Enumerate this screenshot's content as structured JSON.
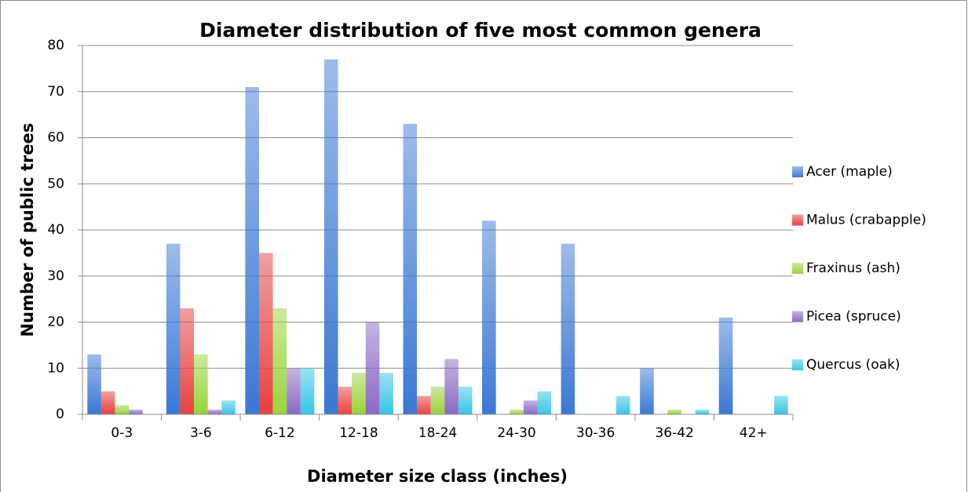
{
  "chart_data": {
    "type": "bar",
    "title": "Diameter distribution of five most common genera",
    "x_label": "Diameter size class (inches)",
    "y_label": "Number of public trees",
    "categories": [
      "0-3",
      "3-6",
      "6-12",
      "12-18",
      "18-24",
      "24-30",
      "30-36",
      "36-42",
      "42+"
    ],
    "series": [
      {
        "name": "Acer (maple)",
        "color": "#3b78d4",
        "values": [
          13,
          37,
          71,
          77,
          63,
          42,
          37,
          10,
          21
        ]
      },
      {
        "name": "Malus (crabapple)",
        "color": "#e8403f",
        "values": [
          5,
          23,
          35,
          6,
          4,
          0,
          0,
          0,
          0
        ]
      },
      {
        "name": "Fraxinus (ash)",
        "color": "#98d43a",
        "values": [
          2,
          13,
          23,
          9,
          6,
          1,
          0,
          1,
          0
        ]
      },
      {
        "name": "Picea (spruce)",
        "color": "#8c68c4",
        "values": [
          1,
          1,
          10,
          20,
          12,
          3,
          0,
          0,
          0
        ]
      },
      {
        "name": "Quercus (oak)",
        "color": "#36c6e6",
        "values": [
          0,
          3,
          10,
          9,
          6,
          5,
          4,
          1,
          4
        ]
      }
    ],
    "ylim": [
      0,
      80
    ],
    "yticks": [
      0,
      10,
      20,
      30,
      40,
      50,
      60,
      70,
      80
    ],
    "grid": true,
    "legend": "right"
  }
}
